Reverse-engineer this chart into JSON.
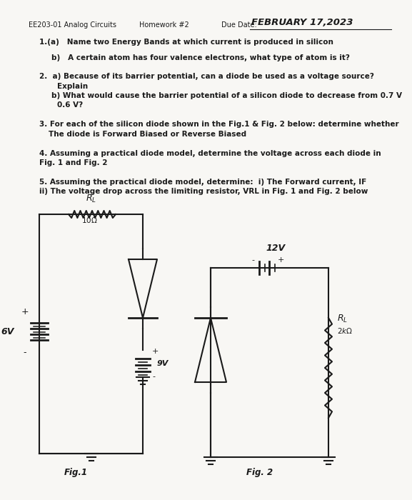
{
  "background_color": "#f8f7f4",
  "header_left": "EE203-01 Analog Circuits",
  "header_mid": "Homework #2",
  "header_right_plain": "Due Date: ",
  "header_right_hw": "FEBRUARY 17,2023",
  "q1a": "1.(a)   Name two Energy Bands at which current is produced in silicon",
  "q1b": "b)   A certain atom has four valence electrons, what type of atom is it?",
  "q2a": "2.  a) Because of its barrier potential, can a diode be used as a voltage source?",
  "q2a2": "Explain",
  "q2b": "b) What would cause the barrier potential of a silicon diode to decrease from 0.7 V",
  "q2b2": "0.6 V?",
  "q3": "3. For each of the silicon diode shown in the Fig.1 & Fig. 2 below: determine whether",
  "q3b": "The diode is Forward Biased or Reverse Biased",
  "q4": "4. Assuming a practical diode model, determine the voltage across each diode in",
  "q4b": "Fig. 1 and Fig. 2",
  "q5": "5. Assuming the practical diode model, determine:  i) The Forward current, IF",
  "q5b": "ii) The voltage drop across the limiting resistor, VRL in Fig. 1 and Fig. 2 below",
  "text_color": "#1a1a1a",
  "font_size_header": 7.0,
  "font_size_body": 7.5,
  "font_size_hw": 9.5
}
